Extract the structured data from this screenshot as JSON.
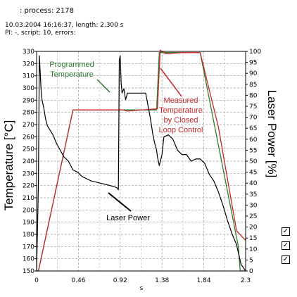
{
  "header": {
    "process": ": process: 2178",
    "line1": "10.03.2004 16:16:37, length: 2.300 s",
    "line2": "PI: -, script: 10, errors:"
  },
  "checkboxes": [
    {
      "checked": true,
      "mark": "✓"
    },
    {
      "checked": true,
      "mark": "✓"
    },
    {
      "checked": true,
      "mark": "✓"
    }
  ],
  "chart_data": {
    "type": "line",
    "xlabel": "s",
    "ylabel": "Temperature [°C]",
    "y2label": "Laser Power [%]",
    "xlim": [
      0,
      2.3
    ],
    "ylim": [
      150,
      330
    ],
    "y2lim": [
      0,
      100
    ],
    "x_ticks": [
      "0",
      "0.46",
      "0.92",
      "1.38",
      "1.84",
      "2.3"
    ],
    "y_ticks": [
      "150",
      "160",
      "170",
      "180",
      "190",
      "200",
      "210",
      "220",
      "230",
      "240",
      "250",
      "260",
      "270",
      "280",
      "290",
      "300",
      "310",
      "320",
      "330"
    ],
    "y2_ticks": [
      "0",
      "5",
      "10",
      "15",
      "20",
      "25",
      "30",
      "35",
      "40",
      "45",
      "50",
      "55",
      "60",
      "65",
      "70",
      "75",
      "80",
      "85",
      "90",
      "95",
      "100"
    ],
    "grid": true,
    "annotations": [
      {
        "text": "Programmed\nTemperature",
        "color": "#2e7d32"
      },
      {
        "text": "Measured\nTemperature\nby Closed\nLoop Control",
        "color": "#c62828"
      },
      {
        "text": "Laser Power",
        "color": "#000000"
      }
    ],
    "series": [
      {
        "color": "#2e7d32",
        "axis": "left",
        "x": [
          0,
          0.02,
          0.4,
          1.32,
          1.35,
          1.8,
          2.22,
          2.24,
          2.3
        ],
        "y": [
          150,
          150,
          282,
          282,
          329,
          329,
          170,
          150,
          150
        ]
      },
      {
        "color": "#c62828",
        "axis": "left",
        "x": [
          0,
          0.02,
          0.4,
          0.95,
          1.0,
          1.33,
          1.36,
          1.42,
          1.6,
          1.8,
          2.0,
          2.2,
          2.3
        ],
        "y": [
          150,
          150,
          282,
          282,
          281,
          283,
          331,
          328,
          329,
          329,
          268,
          183,
          175
        ]
      },
      {
        "color": "#000000",
        "axis": "right",
        "x": [
          0,
          0.02,
          0.03,
          0.05,
          0.06,
          0.08,
          0.1,
          0.12,
          0.15,
          0.18,
          0.22,
          0.26,
          0.3,
          0.35,
          0.4,
          0.45,
          0.5,
          0.6,
          0.7,
          0.8,
          0.88,
          0.9,
          0.91,
          0.92,
          0.93,
          0.94,
          0.96,
          0.98,
          1.0,
          1.05,
          1.1,
          1.15,
          1.2,
          1.25,
          1.28,
          1.3,
          1.32,
          1.33,
          1.34,
          1.35,
          1.38,
          1.4,
          1.45,
          1.5,
          1.55,
          1.6,
          1.65,
          1.7,
          1.75,
          1.8,
          1.85,
          1.9,
          1.95,
          2.0,
          2.05,
          2.1,
          2.15,
          2.2,
          2.25,
          2.3
        ],
        "y": [
          0,
          40,
          98,
          82,
          78,
          74,
          69,
          66,
          64,
          62,
          58,
          55,
          52,
          50,
          46,
          45,
          43,
          41,
          40,
          39,
          38,
          37,
          96,
          98,
          86,
          81,
          83,
          78,
          81,
          81,
          81,
          81,
          81,
          70,
          62,
          58,
          55,
          52,
          50,
          48,
          53,
          61,
          62,
          60,
          55,
          53,
          53,
          50,
          51,
          51,
          49,
          44,
          41,
          36,
          30,
          23,
          17,
          12,
          3,
          0
        ]
      }
    ]
  }
}
